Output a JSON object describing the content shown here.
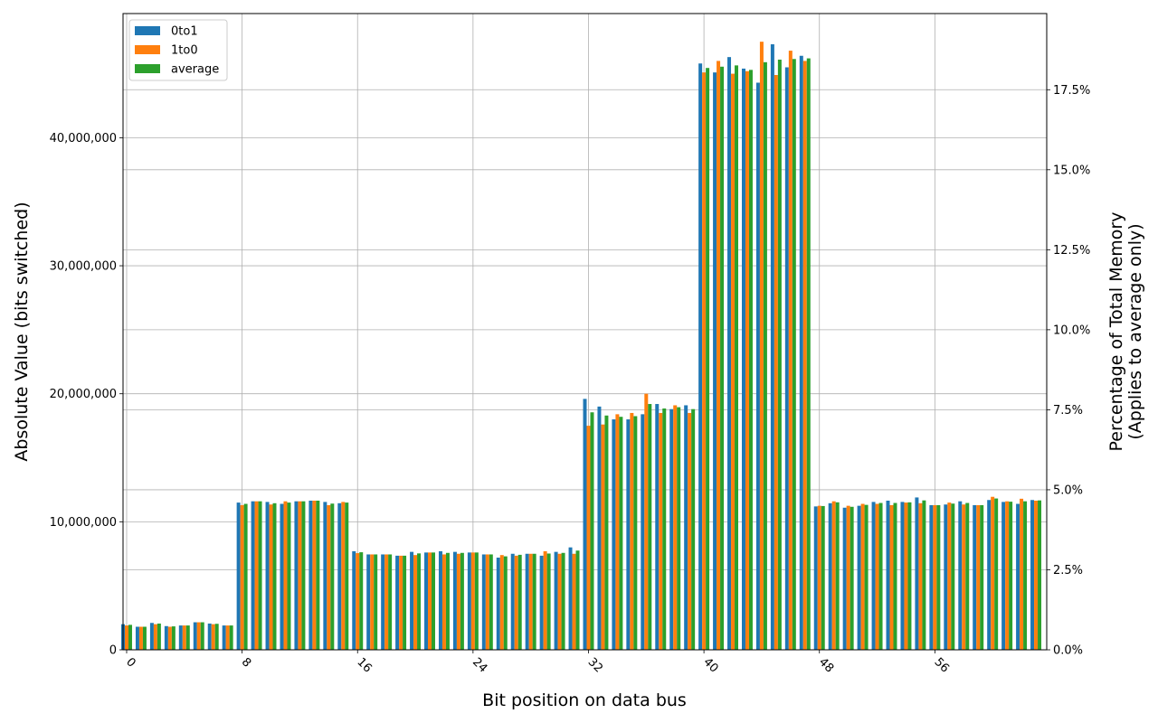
{
  "chart_data": {
    "type": "bar",
    "xlabel": "Bit position on data bus",
    "ylabel": "Absolute Value (bits switched)",
    "y2label_line1": "Percentage of Total Memory",
    "y2label_line2": "(Applies to average only)",
    "x_ticks": [
      "0",
      "8",
      "16",
      "24",
      "32",
      "40",
      "48",
      "56"
    ],
    "y_ticks": [
      "0",
      "10,000,000",
      "20,000,000",
      "30,000,000",
      "40,000,000"
    ],
    "y2_ticks": [
      "0.0%",
      "2.5%",
      "5.0%",
      "7.5%",
      "10.0%",
      "12.5%",
      "15.0%",
      "17.5%"
    ],
    "ylim": [
      0,
      49700000
    ],
    "y2lim_percent": [
      0,
      19.88
    ],
    "grid": true,
    "legend_position": "top-left",
    "categories": [
      0,
      1,
      2,
      3,
      4,
      5,
      6,
      7,
      8,
      9,
      10,
      11,
      12,
      13,
      14,
      15,
      16,
      17,
      18,
      19,
      20,
      21,
      22,
      23,
      24,
      25,
      26,
      27,
      28,
      29,
      30,
      31,
      32,
      33,
      34,
      35,
      36,
      37,
      38,
      39,
      40,
      41,
      42,
      43,
      44,
      45,
      46,
      47,
      48,
      49,
      50,
      51,
      52,
      53,
      54,
      55,
      56,
      57,
      58,
      59,
      60,
      61,
      62,
      63
    ],
    "series": [
      {
        "name": "0to1",
        "color": "#1f77b4",
        "values": [
          2000000,
          1800000,
          2100000,
          1850000,
          1900000,
          2150000,
          2050000,
          1900000,
          11500000,
          11600000,
          11550000,
          11400000,
          11600000,
          11650000,
          11550000,
          11450000,
          7700000,
          7450000,
          7450000,
          7350000,
          7650000,
          7600000,
          7700000,
          7650000,
          7600000,
          7450000,
          7200000,
          7500000,
          7500000,
          7350000,
          7650000,
          8000000,
          19600000,
          19000000,
          18000000,
          18000000,
          18400000,
          19200000,
          18800000,
          19100000,
          45800000,
          45100000,
          46300000,
          45400000,
          44300000,
          47300000,
          45500000,
          46400000,
          11200000,
          11450000,
          11100000,
          11250000,
          11550000,
          11650000,
          11550000,
          11900000,
          11300000,
          11350000,
          11600000,
          11300000,
          11700000,
          11550000,
          11400000,
          11700000
        ]
      },
      {
        "name": "1to0",
        "color": "#ff7f0e",
        "values": [
          1900000,
          1800000,
          2000000,
          1800000,
          1900000,
          2150000,
          2000000,
          1900000,
          11300000,
          11600000,
          11350000,
          11600000,
          11600000,
          11650000,
          11300000,
          11550000,
          7550000,
          7450000,
          7450000,
          7350000,
          7400000,
          7600000,
          7450000,
          7500000,
          7600000,
          7450000,
          7400000,
          7350000,
          7500000,
          7700000,
          7500000,
          7500000,
          17500000,
          17600000,
          18400000,
          18500000,
          20000000,
          18500000,
          19100000,
          18500000,
          45100000,
          46000000,
          45000000,
          45200000,
          47500000,
          44900000,
          46800000,
          46000000,
          11250000,
          11600000,
          11250000,
          11400000,
          11400000,
          11300000,
          11500000,
          11450000,
          11300000,
          11500000,
          11350000,
          11300000,
          11950000,
          11600000,
          11800000,
          11650000
        ]
      },
      {
        "name": "average",
        "color": "#2ca02c",
        "values": [
          1950000,
          1800000,
          2050000,
          1830000,
          1900000,
          2150000,
          2030000,
          1900000,
          11400000,
          11600000,
          11450000,
          11500000,
          11600000,
          11650000,
          11420000,
          11500000,
          7620000,
          7450000,
          7450000,
          7350000,
          7530000,
          7600000,
          7570000,
          7570000,
          7600000,
          7450000,
          7300000,
          7420000,
          7500000,
          7520000,
          7570000,
          7750000,
          18550000,
          18300000,
          18200000,
          18250000,
          19200000,
          18850000,
          18950000,
          18800000,
          45450000,
          45550000,
          45650000,
          45300000,
          45900000,
          46100000,
          46150000,
          46200000,
          11230000,
          11520000,
          11170000,
          11320000,
          11470000,
          11470000,
          11520000,
          11670000,
          11300000,
          11420000,
          11470000,
          11300000,
          11820000,
          11570000,
          11600000,
          11670000
        ]
      }
    ]
  }
}
